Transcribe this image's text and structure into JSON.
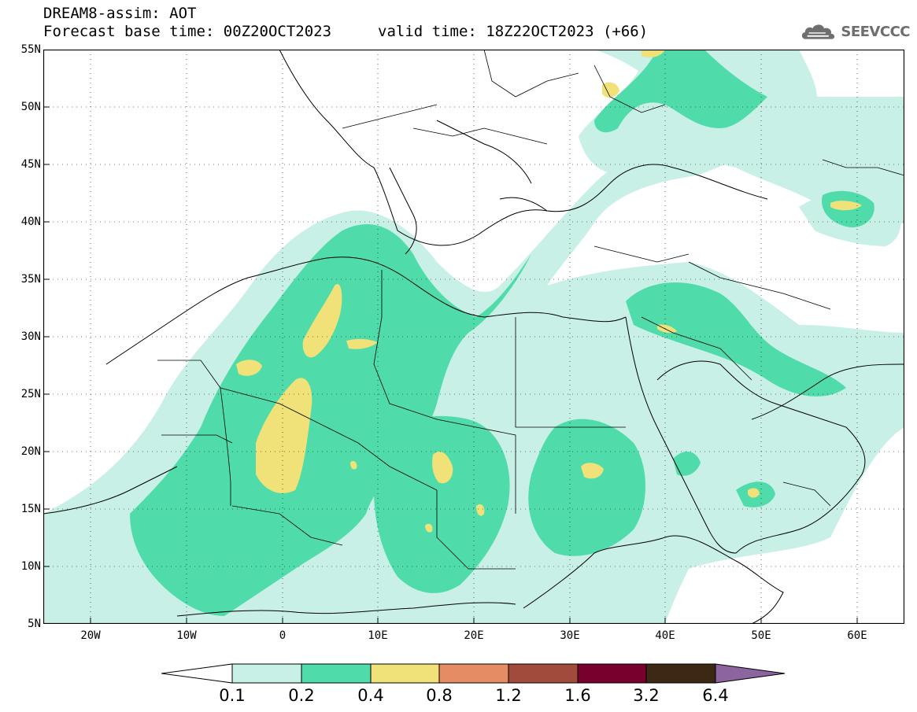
{
  "title": {
    "line1": "DREAM8-assim: AOT",
    "line2": "Forecast base time: 00Z20OCT2023",
    "valid": "valid time: 18Z22OCT2023 (+66)"
  },
  "logo": {
    "text": "SEEVCCC",
    "icon": "cloud-icon"
  },
  "map": {
    "region": "North Africa, Europe and Middle East",
    "lat_labels": [
      "55N",
      "50N",
      "45N",
      "40N",
      "35N",
      "30N",
      "25N",
      "20N",
      "15N",
      "10N",
      "5N"
    ],
    "lon_labels": [
      "20W",
      "10W",
      "0",
      "10E",
      "20E",
      "30E",
      "40E",
      "50E",
      "60E"
    ],
    "lon_range": [
      -25,
      65
    ],
    "lat_range": [
      5,
      55
    ]
  },
  "legend": {
    "levels": [
      "0.1",
      "0.2",
      "0.4",
      "0.8",
      "1.2",
      "1.6",
      "3.2",
      "6.4"
    ],
    "colors": [
      "#c8f0e6",
      "#50dcaa",
      "#f0e178",
      "#e68c64",
      "#a04b3c",
      "#78002d",
      "#3c2814",
      "#8c64a0"
    ],
    "below_color": "#ffffff"
  }
}
